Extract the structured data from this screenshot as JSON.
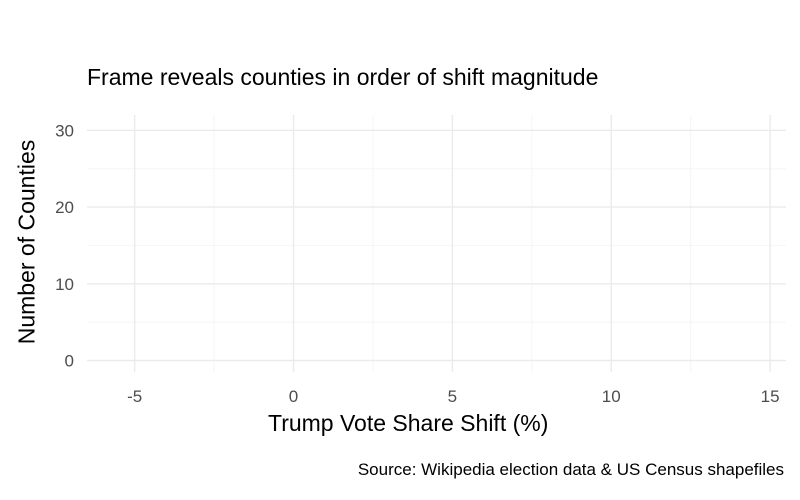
{
  "chart_data": {
    "type": "bar",
    "title": "Frame reveals counties in order of shift magnitude",
    "xlabel": "Trump Vote Share Shift (%)",
    "ylabel": "Number of Counties",
    "caption": "Source: Wikipedia election data & US Census shapefiles",
    "xlim": [
      -6.5,
      15.5
    ],
    "ylim": [
      -1.5,
      32
    ],
    "x_ticks": [
      -5,
      0,
      5,
      10,
      15
    ],
    "x_tick_labels": [
      "-5",
      "0",
      "5",
      "10",
      "15"
    ],
    "y_ticks": [
      0,
      10,
      20,
      30
    ],
    "y_tick_labels": [
      "0",
      "10",
      "20",
      "30"
    ],
    "grid": true,
    "legend": "none",
    "bins": [
      {
        "x": -5,
        "count": 0
      },
      {
        "x": 0,
        "count": 0
      },
      {
        "x": 5,
        "count": 0
      },
      {
        "x": 10,
        "count": 0
      }
    ],
    "colors": {
      "grid_major": "#ebebeb",
      "grid_minor": "#f5f5f5",
      "tick_text": "#4d4d4d",
      "text": "#000000"
    }
  }
}
